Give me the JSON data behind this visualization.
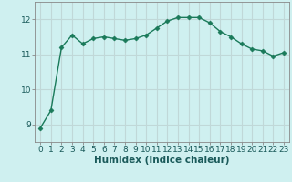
{
  "x": [
    0,
    1,
    2,
    3,
    4,
    5,
    6,
    7,
    8,
    9,
    10,
    11,
    12,
    13,
    14,
    15,
    16,
    17,
    18,
    19,
    20,
    21,
    22,
    23
  ],
  "y": [
    8.9,
    9.4,
    11.2,
    11.55,
    11.3,
    11.45,
    11.5,
    11.45,
    11.4,
    11.45,
    11.55,
    11.75,
    11.95,
    12.05,
    12.05,
    12.05,
    11.9,
    11.65,
    11.5,
    11.3,
    11.15,
    11.1,
    10.95,
    11.05
  ],
  "line_color": "#1a7a5a",
  "marker": "D",
  "marker_size": 2.5,
  "bg_color": "#cff0f0",
  "grid_color": "#c0d8d8",
  "xlabel": "Humidex (Indice chaleur)",
  "ylim": [
    8.5,
    12.5
  ],
  "xlim": [
    -0.5,
    23.5
  ],
  "yticks": [
    9,
    10,
    11,
    12
  ],
  "xticks": [
    0,
    1,
    2,
    3,
    4,
    5,
    6,
    7,
    8,
    9,
    10,
    11,
    12,
    13,
    14,
    15,
    16,
    17,
    18,
    19,
    20,
    21,
    22,
    23
  ],
  "tick_fontsize": 6.5,
  "xlabel_fontsize": 7.5,
  "line_width": 1.0,
  "spine_color": "#888888",
  "text_color": "#1a5a5a"
}
